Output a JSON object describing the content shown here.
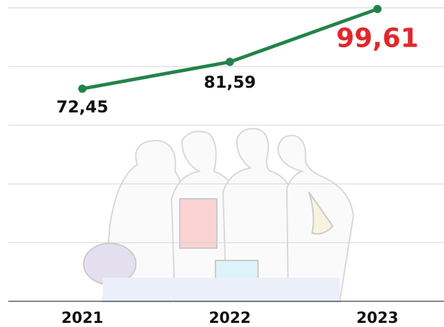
{
  "chart_data": {
    "type": "line",
    "categories": [
      "2021",
      "2022",
      "2023"
    ],
    "series": [
      {
        "color": "#23834a",
        "values": [
          72.45,
          81.59,
          99.61
        ],
        "value_labels": [
          "72,45",
          "81,59",
          "99,61"
        ],
        "value_label_colors": [
          "#111111",
          "#111111",
          "#e3262b"
        ]
      }
    ],
    "ylim": [
      0,
      100
    ],
    "yticks": [
      0,
      20,
      40,
      60,
      80,
      100
    ],
    "grid": true
  }
}
